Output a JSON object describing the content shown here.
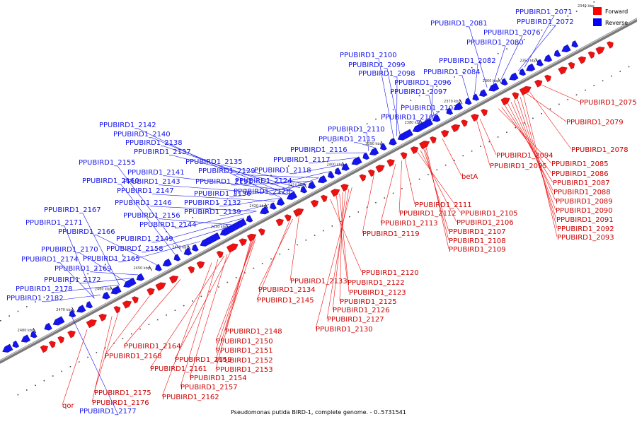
{
  "caption": "Pseudomonas putida BIRD-1, complete genome. - 0..5731541",
  "legend": {
    "forward_label": "Forward",
    "reverse_label": "Reverse",
    "forward_color": "#ff0000",
    "reverse_color": "#0000ff",
    "tick_scale_label": "2340 kbp"
  },
  "colors": {
    "forward": "#ee1111",
    "reverse": "#1414ee",
    "axis": "#7a7a7a"
  },
  "ticks": [
    "2350 kbp",
    "2360 kbp",
    "2370 kbp",
    "2380 kbp",
    "2390 kbp",
    "2400 kbp",
    "2410 kbp",
    "2420 kbp",
    "2430 kbp",
    "2440 kbp",
    "2450 kbp",
    "2460 kbp",
    "2470 kbp",
    "2480 kbp"
  ],
  "reverse_labels": [
    "PPUBIRD1_2071",
    "PPUBIRD1_2072",
    "PPUBIRD1_2076",
    "PPUBIRD1_2081",
    "PPUBIRD1_2080",
    "PPUBIRD1_2082",
    "PPUBIRD1_2084",
    "PPUBIRD1_2100",
    "PPUBIRD1_2099",
    "PPUBIRD1_2098",
    "PPUBIRD1_2096",
    "PPUBIRD1_2097",
    "PPUBIRD1_2101",
    "PPUBIRD1_2102",
    "PPUBIRD1_2110",
    "PPUBIRD1_2115",
    "PPUBIRD1_2116",
    "PPUBIRD1_2117",
    "PPUBIRD1_2118",
    "PPUBIRD1_2142",
    "PPUBIRD1_2140",
    "PPUBIRD1_2138",
    "PPUBIRD1_2137",
    "PPUBIRD1_2135",
    "PPUBIRD1_2155",
    "PPUBIRD1_2141",
    "PPUBIRD1_2129",
    "PPUBIRD1_2143",
    "PPUBIRD1_2131",
    "PPUBIRD1_2124",
    "PPUBIRD1_2160",
    "PPUBIRD1_2147",
    "PPUBIRD1_2136",
    "PPUBIRD1_2128",
    "PPUBIRD1_2146",
    "PPUBIRD1_2132",
    "PPUBIRD1_2167",
    "PPUBIRD1_2156",
    "PPUBIRD1_2139",
    "PPUBIRD1_2171",
    "PPUBIRD1_2144",
    "PPUBIRD1_2166",
    "PPUBIRD1_2149",
    "PPUBIRD1_2170",
    "PPUBIRD1_2158",
    "PPUBIRD1_2174",
    "PPUBIRD1_2165",
    "PPUBIRD1_2169",
    "PPUBIRD1_2172",
    "PPUBIRD1_2178",
    "PPUBIRD1_2182",
    "PPUBIRD1_2177"
  ],
  "forward_labels": [
    "PPUBIRD1_2075",
    "PPUBIRD1_2079",
    "PPUBIRD1_2078",
    "PPUBIRD1_2094",
    "PPUBIRD1_2095",
    "PPUBIRD1_2085",
    "PPUBIRD1_2086",
    "PPUBIRD1_2087",
    "PPUBIRD1_2088",
    "PPUBIRD1_2089",
    "PPUBIRD1_2090",
    "PPUBIRD1_2091",
    "PPUBIRD1_2092",
    "PPUBIRD1_2093",
    "betA",
    "PPUBIRD1_2111",
    "PPUBIRD1_2112",
    "PPUBIRD1_2105",
    "PPUBIRD1_2113",
    "PPUBIRD1_2106",
    "PPUBIRD1_2119",
    "PPUBIRD1_2107",
    "PPUBIRD1_2108",
    "PPUBIRD1_2109",
    "PPUBIRD1_2120",
    "PPUBIRD1_2133",
    "PPUBIRD1_2122",
    "PPUBIRD1_2134",
    "PPUBIRD1_2123",
    "PPUBIRD1_2145",
    "PPUBIRD1_2125",
    "PPUBIRD1_2126",
    "PPUBIRD1_2127",
    "PPUBIRD1_2130",
    "PPUBIRD1_2148",
    "PPUBIRD1_2150",
    "PPUBIRD1_2164",
    "PPUBIRD1_2151",
    "PPUBIRD1_2168",
    "PPUBIRD1_2159",
    "PPUBIRD1_2152",
    "PPUBIRD1_2161",
    "PPUBIRD1_2153",
    "PPUBIRD1_2154",
    "PPUBIRD1_2157",
    "PPUBIRD1_2162",
    "PPUBIRD1_2175",
    "PPUBIRD1_2176",
    "qor"
  ]
}
